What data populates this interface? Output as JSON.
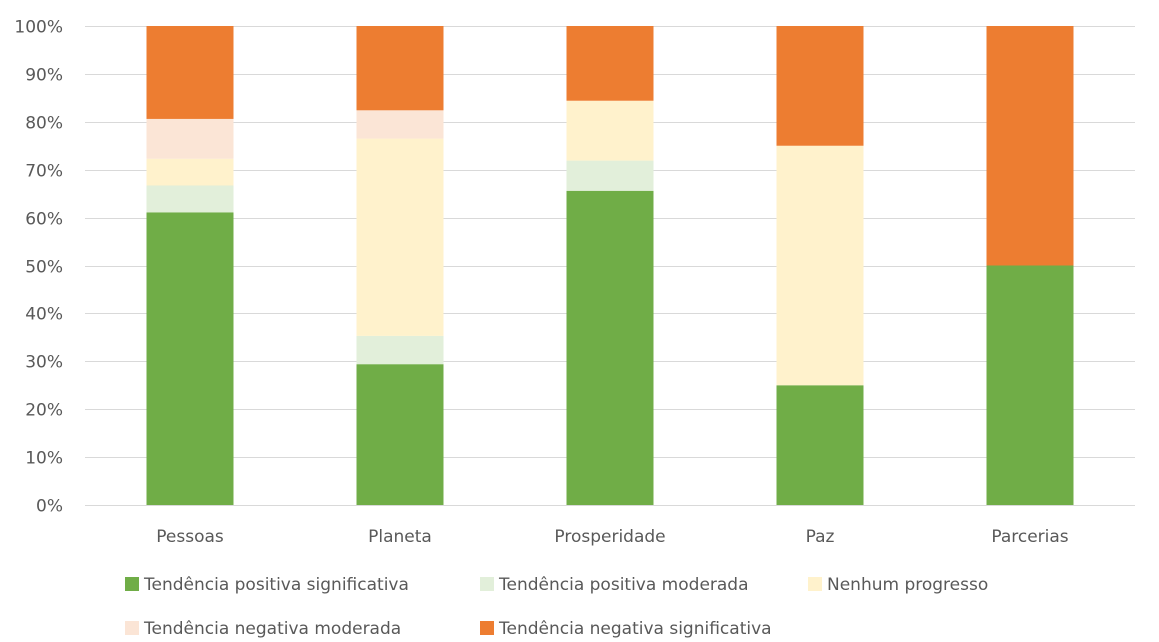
{
  "chart_data": {
    "type": "bar",
    "stacked": true,
    "percent_stacked": true,
    "categories": [
      "Pessoas",
      "Planeta",
      "Prosperidade",
      "Paz",
      "Parcerias"
    ],
    "series": [
      {
        "name": "Tendência positiva significativa",
        "color": "#70ad47",
        "values": [
          61.1,
          29.4,
          65.6,
          25.0,
          50.0
        ]
      },
      {
        "name": "Tendência positiva moderada",
        "color": "#e2efda",
        "values": [
          5.6,
          5.9,
          6.3,
          0,
          0
        ]
      },
      {
        "name": "Nenhum progresso",
        "color": "#fff2cc",
        "values": [
          5.6,
          41.2,
          12.5,
          50.0,
          0
        ]
      },
      {
        "name": "Tendência negativa moderada",
        "color": "#fbe5d6",
        "values": [
          8.3,
          5.9,
          0,
          0,
          0
        ]
      },
      {
        "name": "Tendência negativa significativa",
        "color": "#ed7d31",
        "values": [
          19.4,
          17.6,
          15.6,
          25.0,
          50.0
        ]
      }
    ],
    "ylim": [
      0,
      100
    ],
    "yticks": [
      "0%",
      "10%",
      "20%",
      "30%",
      "40%",
      "50%",
      "60%",
      "70%",
      "80%",
      "90%",
      "100%"
    ],
    "grid": true,
    "legend_position": "bottom",
    "title": "",
    "xlabel": "",
    "ylabel": ""
  }
}
